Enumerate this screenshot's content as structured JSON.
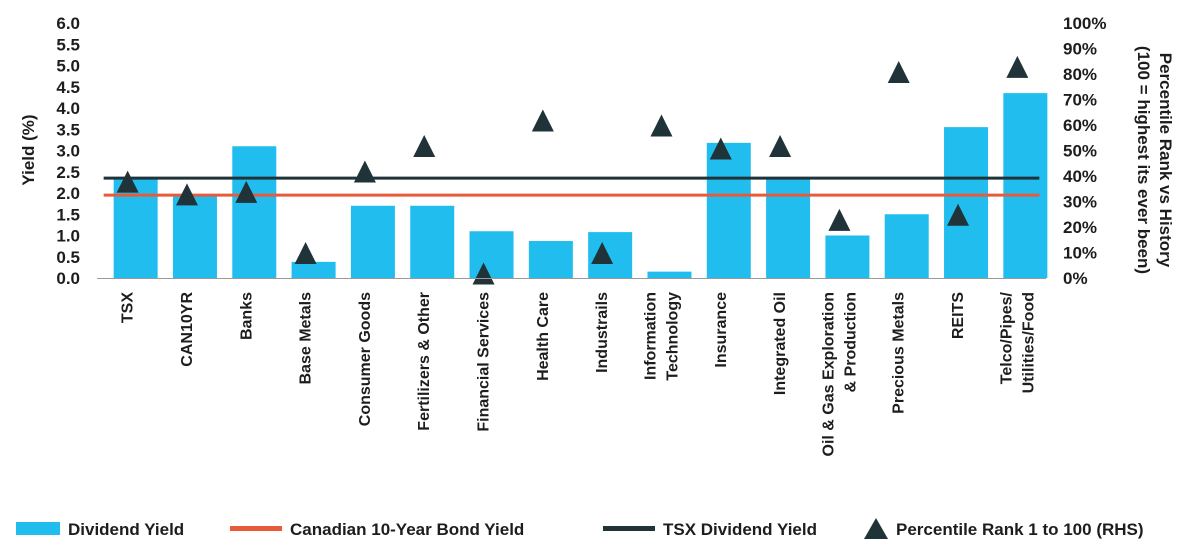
{
  "chart_data": {
    "type": "bar",
    "categories": [
      "TSX",
      "CAN10YR",
      "Banks",
      "Base Metals",
      "Consumer Goods",
      "Fertilizers & Other",
      "Financial Services",
      "Health Care",
      "Industrails",
      "Information Technology",
      "Insurance",
      "Integrated Oil",
      "Oil & Gas Exploration & Production",
      "Precious Metals",
      "REITS",
      "Telco/Pipes/ Utilities/Food"
    ],
    "category_lines": [
      [
        "TSX"
      ],
      [
        "CAN10YR"
      ],
      [
        "Banks"
      ],
      [
        "Base Metals"
      ],
      [
        "Consumer Goods"
      ],
      [
        "Fertilizers & Other"
      ],
      [
        "Financial Services"
      ],
      [
        "Health Care"
      ],
      [
        "Industrails"
      ],
      [
        "Information",
        "Technology"
      ],
      [
        "Insurance"
      ],
      [
        "Integrated Oil"
      ],
      [
        "Oil & Gas Exploration",
        "& Production"
      ],
      [
        "Precious Metals"
      ],
      [
        "REITS"
      ],
      [
        "Telco/Pipes/",
        "Utilities/Food"
      ]
    ],
    "series": [
      {
        "name": "Dividend Yield",
        "kind": "bar",
        "axis": "left",
        "values": [
          2.35,
          1.95,
          3.1,
          0.38,
          1.7,
          1.7,
          1.1,
          0.87,
          1.08,
          0.15,
          3.18,
          2.35,
          1.0,
          1.5,
          3.55,
          4.35
        ]
      },
      {
        "name": "Canadian 10-Year Bond Yield",
        "kind": "line",
        "axis": "left",
        "value": 1.95
      },
      {
        "name": "TSX Dividend Yield",
        "kind": "line",
        "axis": "left",
        "value": 2.35
      },
      {
        "name": "Percentile Rank 1 to 100 (RHS)",
        "kind": "marker",
        "axis": "right",
        "values": [
          37,
          32,
          33,
          9,
          41,
          51,
          1,
          61,
          9,
          59,
          50,
          51,
          22,
          80,
          24,
          82
        ]
      }
    ],
    "ylabel": "Yield (%)",
    "y2label_lines": [
      "Percentile Rank vs History",
      "(100 = highest its ever been)"
    ],
    "ylim": [
      0,
      6
    ],
    "yticks": [
      "0.0",
      "0.5",
      "1.0",
      "1.5",
      "2.0",
      "2.5",
      "3.0",
      "3.5",
      "4.0",
      "4.5",
      "5.0",
      "5.5",
      "6.0"
    ],
    "y2lim": [
      0,
      100
    ],
    "y2ticks": [
      "0%",
      "10%",
      "20%",
      "30%",
      "40%",
      "50%",
      "60%",
      "70%",
      "80%",
      "90%",
      "100%"
    ],
    "grid": false,
    "legend_position": "bottom",
    "colors": {
      "bar": "#21bdee",
      "bond_line": "#e85b3a",
      "tsx_line": "#1f3338",
      "marker": "#1f3338",
      "axis": "#9a9a9a",
      "text": "#1d1d1b"
    }
  }
}
